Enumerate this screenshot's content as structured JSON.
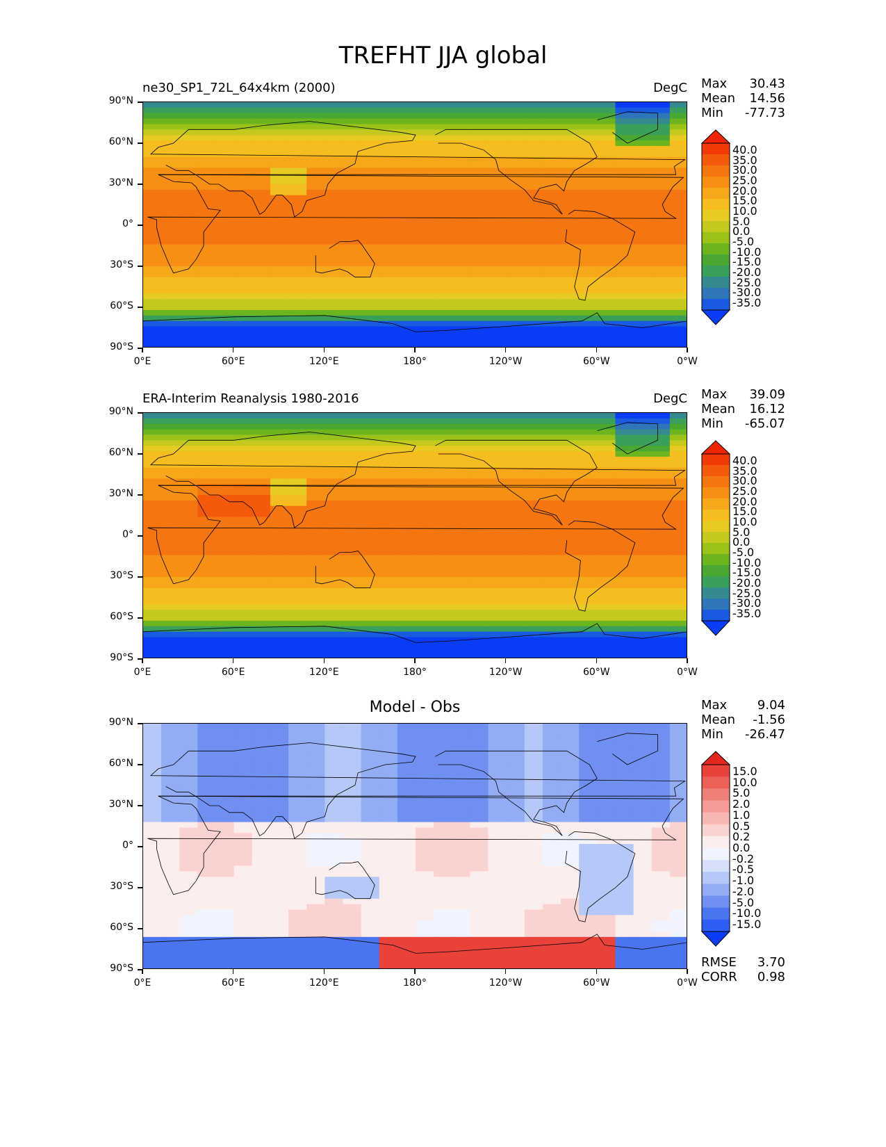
{
  "title": "TREFHT JJA global",
  "panels": [
    {
      "title_left": "ne30_SP1_72L_64x4km (2000)",
      "title_right": "DegC",
      "title_center": "",
      "stats": {
        "max_label": "Max",
        "max": "30.43",
        "mean_label": "Mean",
        "mean": "14.56",
        "min_label": "Min",
        "min": "-77.73"
      },
      "colorbar_levels": [
        "40.0",
        "35.0",
        "30.0",
        "25.0",
        "20.0",
        "15.0",
        "10.0",
        "5.0",
        "0.0",
        "-5.0",
        "-10.0",
        "-15.0",
        "-20.0",
        "-25.0",
        "-30.0",
        "-35.0"
      ]
    },
    {
      "title_left": "ERA-Interim Reanalysis 1980-2016",
      "title_right": "DegC",
      "title_center": "",
      "stats": {
        "max_label": "Max",
        "max": "39.09",
        "mean_label": "Mean",
        "mean": "16.12",
        "min_label": "Min",
        "min": "-65.07"
      },
      "colorbar_levels": [
        "40.0",
        "35.0",
        "30.0",
        "25.0",
        "20.0",
        "15.0",
        "10.0",
        "5.0",
        "0.0",
        "-5.0",
        "-10.0",
        "-15.0",
        "-20.0",
        "-25.0",
        "-30.0",
        "-35.0"
      ]
    },
    {
      "title_left": "",
      "title_right": "",
      "title_center": "Model - Obs",
      "stats": {
        "max_label": "Max",
        "max": "9.04",
        "mean_label": "Mean",
        "mean": "-1.56",
        "min_label": "Min",
        "min": "-26.47"
      },
      "colorbar_levels": [
        "15.0",
        "10.0",
        "5.0",
        "2.0",
        "1.0",
        "0.5",
        "0.2",
        "0.0",
        "-0.2",
        "-0.5",
        "-1.0",
        "-2.0",
        "-5.0",
        "-10.0",
        "-15.0"
      ],
      "rmse_label": "RMSE",
      "rmse": "3.70",
      "corr_label": "CORR",
      "corr": "0.98"
    }
  ],
  "y_ticks": [
    "90°N",
    "60°N",
    "30°N",
    "0°",
    "30°S",
    "60°S",
    "90°S"
  ],
  "x_ticks": [
    "0°E",
    "60°E",
    "120°E",
    "180°",
    "120°W",
    "60°W",
    "0°W"
  ],
  "colors": {
    "temp_scale": [
      "#0b3cf5",
      "#1a5ae0",
      "#2f76b8",
      "#358a90",
      "#3a9f5a",
      "#4aa832",
      "#6db51f",
      "#9ac219",
      "#c4c91e",
      "#e6cb22",
      "#f5bd1f",
      "#f7a71a",
      "#f78f15",
      "#f57510",
      "#f35a0b",
      "#f23a07",
      "#ee2404"
    ],
    "diff_scale": [
      "#0b3cf5",
      "#2f5ef5",
      "#4a74f0",
      "#6f90f2",
      "#92acf5",
      "#b5c8f8",
      "#d6e0fb",
      "#f1f4ff",
      "#fdeeee",
      "#fad2d0",
      "#f7b7b3",
      "#f49b95",
      "#f07f78",
      "#ec6058",
      "#e8423a",
      "#e4281e"
    ]
  }
}
